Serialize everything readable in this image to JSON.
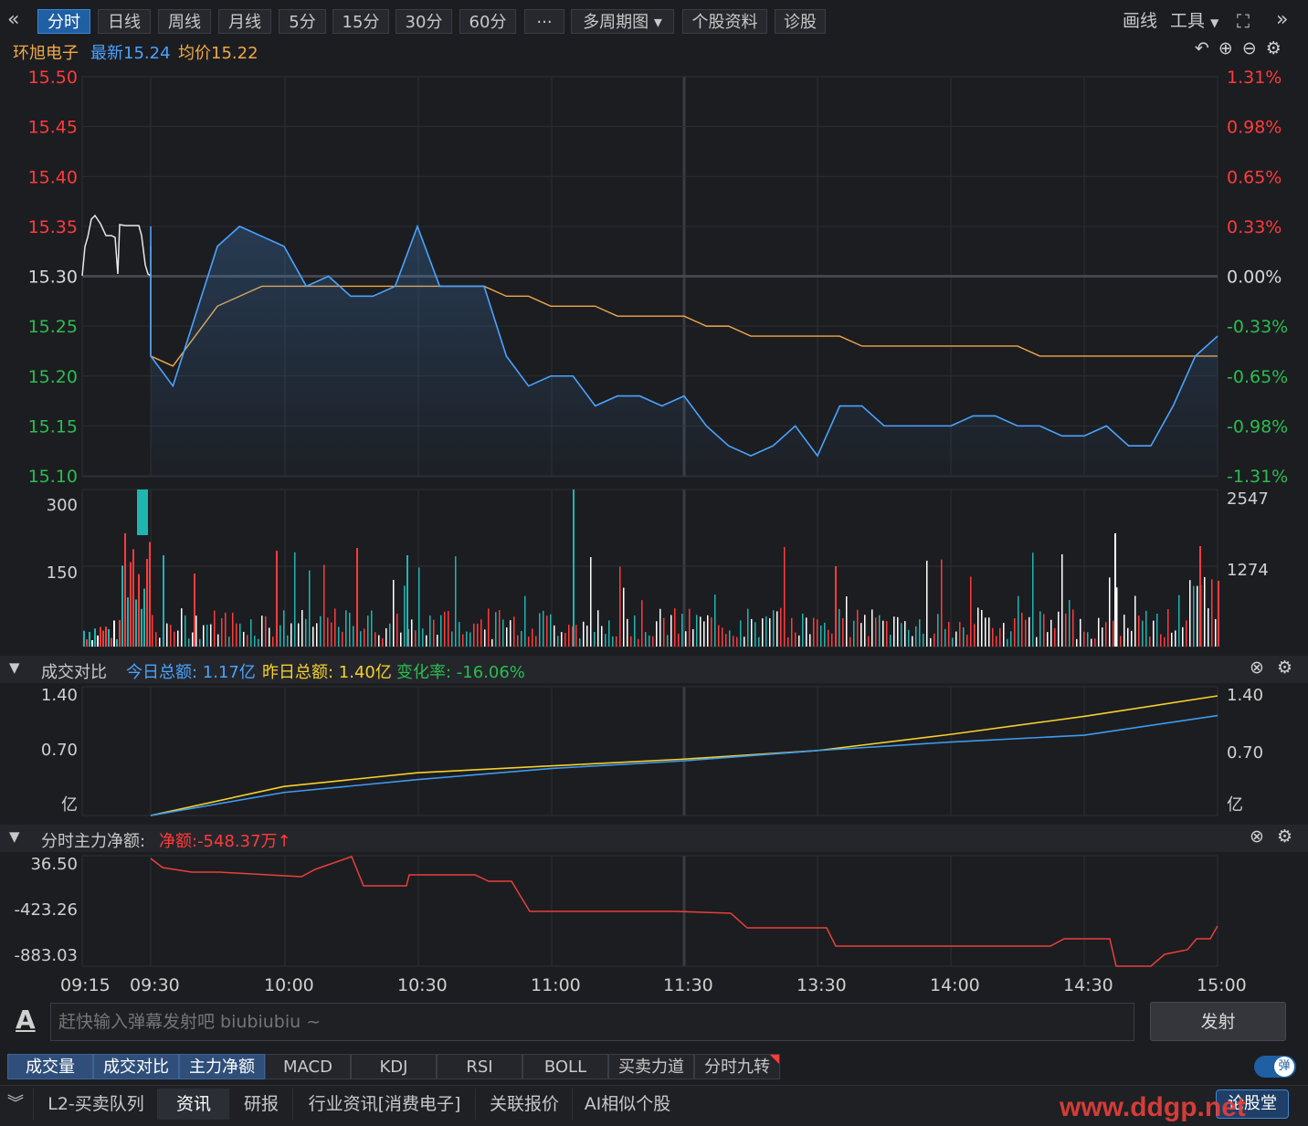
{
  "toolbar": {
    "back_icon": "double-left-chevron-icon",
    "tabs": [
      "分时",
      "日线",
      "周线",
      "月线",
      "5分",
      "15分",
      "30分",
      "60分",
      "···",
      "多周期图",
      "个股资料",
      "诊股"
    ],
    "active_tab": "分时",
    "draw_label": "画线",
    "tools_label": "工具",
    "fullscreen_icon": "fullscreen-icon",
    "forward_icon": "double-right-chevron-icon"
  },
  "quote": {
    "name": "环旭电子",
    "latest": "最新15.24",
    "avg": "均价15.22"
  },
  "price_axis": {
    "left": [
      "15.50",
      "15.45",
      "15.40",
      "15.35",
      "15.30",
      "15.25",
      "15.20",
      "15.15",
      "15.10"
    ],
    "right": [
      "1.31%",
      "0.98%",
      "0.65%",
      "0.33%",
      "0.00%",
      "-0.33%",
      "-0.65%",
      "-0.98%",
      "-1.31%"
    ]
  },
  "volume_axis": {
    "left": [
      "300",
      "150"
    ],
    "right": [
      "2547",
      "1274"
    ]
  },
  "compare_panel": {
    "title": "成交对比",
    "today": "今日总额: 1.17亿",
    "yesterday": "昨日总额: 1.40亿",
    "change": "变化率: -16.06%",
    "left_axis": [
      "1.40",
      "0.70",
      "亿"
    ],
    "right_axis": [
      "1.40",
      "0.70",
      "亿"
    ]
  },
  "netflow_panel": {
    "title": "分时主力净额:",
    "net": "净额:-548.37万",
    "axis": [
      "36.50",
      "-423.26",
      "-883.03"
    ]
  },
  "time_axis": [
    "09:15",
    "09:30",
    "10:00",
    "10:30",
    "11:00",
    "11:30",
    "13:30",
    "14:00",
    "14:30",
    "15:00"
  ],
  "danmu": {
    "placeholder": "赶快输入弹幕发射吧 biubiubiu ~",
    "send": "发射",
    "font_icon": "A",
    "toggle": "弹"
  },
  "indicator_tabs": [
    "成交量",
    "成交对比",
    "主力净额",
    "MACD",
    "KDJ",
    "RSI",
    "BOLL",
    "买卖力道",
    "分时九转"
  ],
  "selected_indicator_tabs": [
    "成交量",
    "成交对比",
    "主力净额"
  ],
  "bottom_tabs": [
    "L2-买卖队列",
    "资讯",
    "研报",
    "行业资讯[消费电子]",
    "关联报价",
    "AI相似个股"
  ],
  "bottom_selected": "资讯",
  "bottom_right": "论股堂",
  "watermark": "www.ddgp.net",
  "colors": {
    "up": "#ff3b3b",
    "down": "#2bbd4f",
    "price_line": "#4aa3ff",
    "avg_line": "#f0a848",
    "yesterday_line": "#f6d02c",
    "today_line": "#3d9bef",
    "netflow": "#e8403a"
  },
  "chart_data": [
    {
      "type": "line",
      "title": "分时",
      "x": [
        "09:25",
        "09:30",
        "09:35",
        "09:40",
        "09:45",
        "09:50",
        "09:55",
        "10:00",
        "10:05",
        "10:10",
        "10:15",
        "10:20",
        "10:25",
        "10:30",
        "10:35",
        "10:40",
        "10:45",
        "10:50",
        "10:55",
        "11:00",
        "11:05",
        "11:10",
        "11:15",
        "11:20",
        "11:25",
        "11:30",
        "13:05",
        "13:10",
        "13:15",
        "13:20",
        "13:25",
        "13:30",
        "13:35",
        "13:40",
        "13:45",
        "13:50",
        "13:55",
        "14:00",
        "14:05",
        "14:10",
        "14:15",
        "14:20",
        "14:25",
        "14:30",
        "14:35",
        "14:40",
        "14:45",
        "14:50",
        "14:55",
        "15:00"
      ],
      "series": [
        {
          "values": [
            15.35,
            15.22,
            15.19,
            15.26,
            15.33,
            15.35,
            15.34,
            15.33,
            15.29,
            15.3,
            15.28,
            15.28,
            15.29,
            15.35,
            15.29,
            15.29,
            15.29,
            15.22,
            15.19,
            15.2,
            15.2,
            15.17,
            15.18,
            15.18,
            15.17,
            15.18,
            15.15,
            15.13,
            15.12,
            15.13,
            15.15,
            15.12,
            15.17,
            15.17,
            15.15,
            15.15,
            15.15,
            15.15,
            15.16,
            15.16,
            15.15,
            15.15,
            15.14,
            15.14,
            15.15,
            15.13,
            15.13,
            15.17,
            15.22,
            15.24
          ]
        },
        {
          "values": [
            15.33,
            15.22,
            15.21,
            15.24,
            15.27,
            15.28,
            15.29,
            15.29,
            15.29,
            15.29,
            15.29,
            15.29,
            15.29,
            15.29,
            15.29,
            15.29,
            15.29,
            15.28,
            15.28,
            15.27,
            15.27,
            15.27,
            15.26,
            15.26,
            15.26,
            15.26,
            15.25,
            15.25,
            15.24,
            15.24,
            15.24,
            15.24,
            15.24,
            15.23,
            15.23,
            15.23,
            15.23,
            15.23,
            15.23,
            15.23,
            15.23,
            15.22,
            15.22,
            15.22,
            15.22,
            15.22,
            15.22,
            15.22,
            15.22,
            15.22
          ]
        }
      ],
      "ylim": [
        15.1,
        15.5
      ],
      "prev_close": 15.3
    },
    {
      "type": "bar",
      "title": "成交量",
      "ylim": [
        0,
        300
      ]
    },
    {
      "type": "line",
      "title": "成交对比",
      "x": [
        "09:30",
        "10:00",
        "10:30",
        "11:00",
        "11:30",
        "13:30",
        "14:00",
        "14:30",
        "15:00"
      ],
      "series": [
        {
          "values": [
            0.0,
            0.27,
            0.42,
            0.55,
            0.64,
            0.76,
            0.86,
            0.94,
            1.17
          ]
        },
        {
          "values": [
            0.0,
            0.34,
            0.5,
            0.58,
            0.66,
            0.76,
            0.95,
            1.16,
            1.4
          ]
        }
      ],
      "ylim": [
        0,
        1.4
      ]
    },
    {
      "type": "line",
      "title": "分时主力净额",
      "x": [
        "09:30",
        "10:00",
        "10:30",
        "11:00",
        "11:30",
        "13:30",
        "14:00",
        "14:30",
        "14:40",
        "15:00"
      ],
      "series": [
        {
          "values": [
            36.5,
            -20,
            -80,
            -300,
            -310,
            -410,
            -480,
            -400,
            -900,
            -548.37
          ]
        }
      ],
      "ylim": [
        -1000,
        36.5
      ]
    }
  ]
}
